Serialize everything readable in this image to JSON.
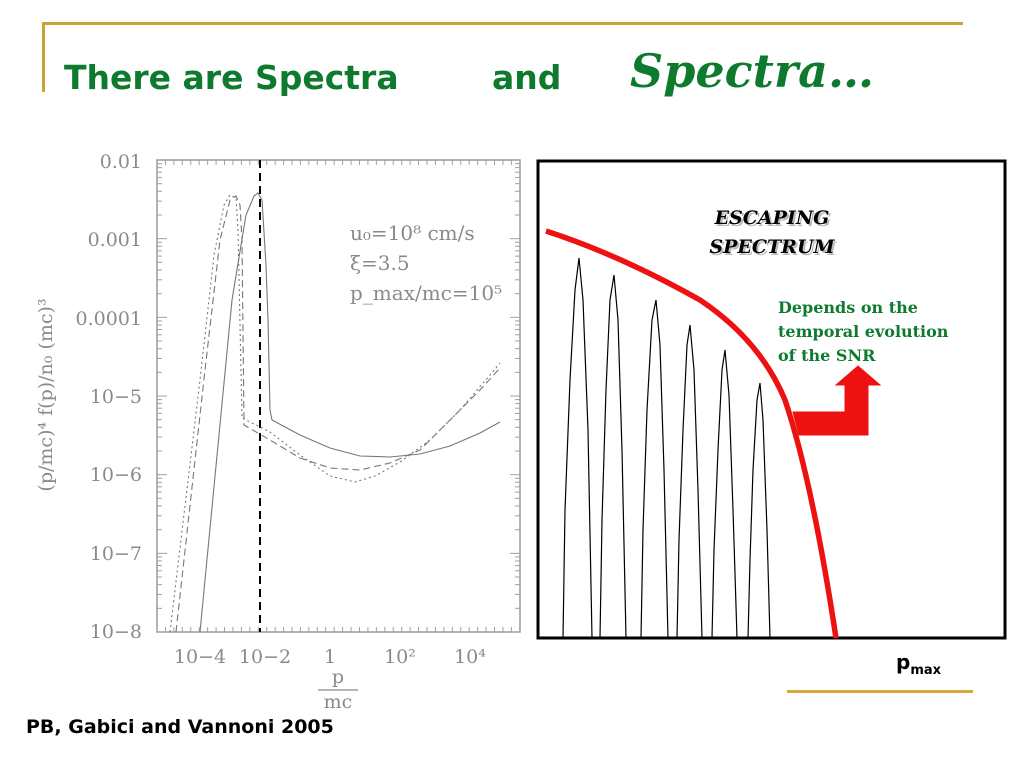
{
  "slide": {
    "title_part1": "There are Spectra",
    "title_part2": "and",
    "title_part3": "Spectra…",
    "citation": "PB, Gabici and Vannoni 2005",
    "title_color": "#0d7a2e",
    "accent_color": "#c9a33a"
  },
  "left_plot": {
    "y_ticks": [
      "0.01",
      "0.001",
      "0.0001",
      "10−5",
      "10−6",
      "10−7",
      "10−8"
    ],
    "x_ticks": [
      "10−4",
      "10−2",
      "1",
      "10²",
      "10⁴"
    ],
    "ylabel": "(p/mc)⁴ f(p)/n₀ (mc)³",
    "xlabel_num": "p",
    "xlabel_den": "mc",
    "annotation_lines": [
      "u₀=10⁸ cm/s",
      "ξ=3.5",
      "p_max/mc=10⁵"
    ]
  },
  "right_plot": {
    "label_line1": "ESCAPING",
    "label_line2": "SPECTRUM",
    "note_line1": "Depends on the",
    "note_line2": "temporal evolution",
    "note_line3": "of the SNR",
    "xlabel_main": "p",
    "xlabel_sub": "max",
    "curve_color": "#ee1111",
    "note_color": "#0d7a2e"
  }
}
